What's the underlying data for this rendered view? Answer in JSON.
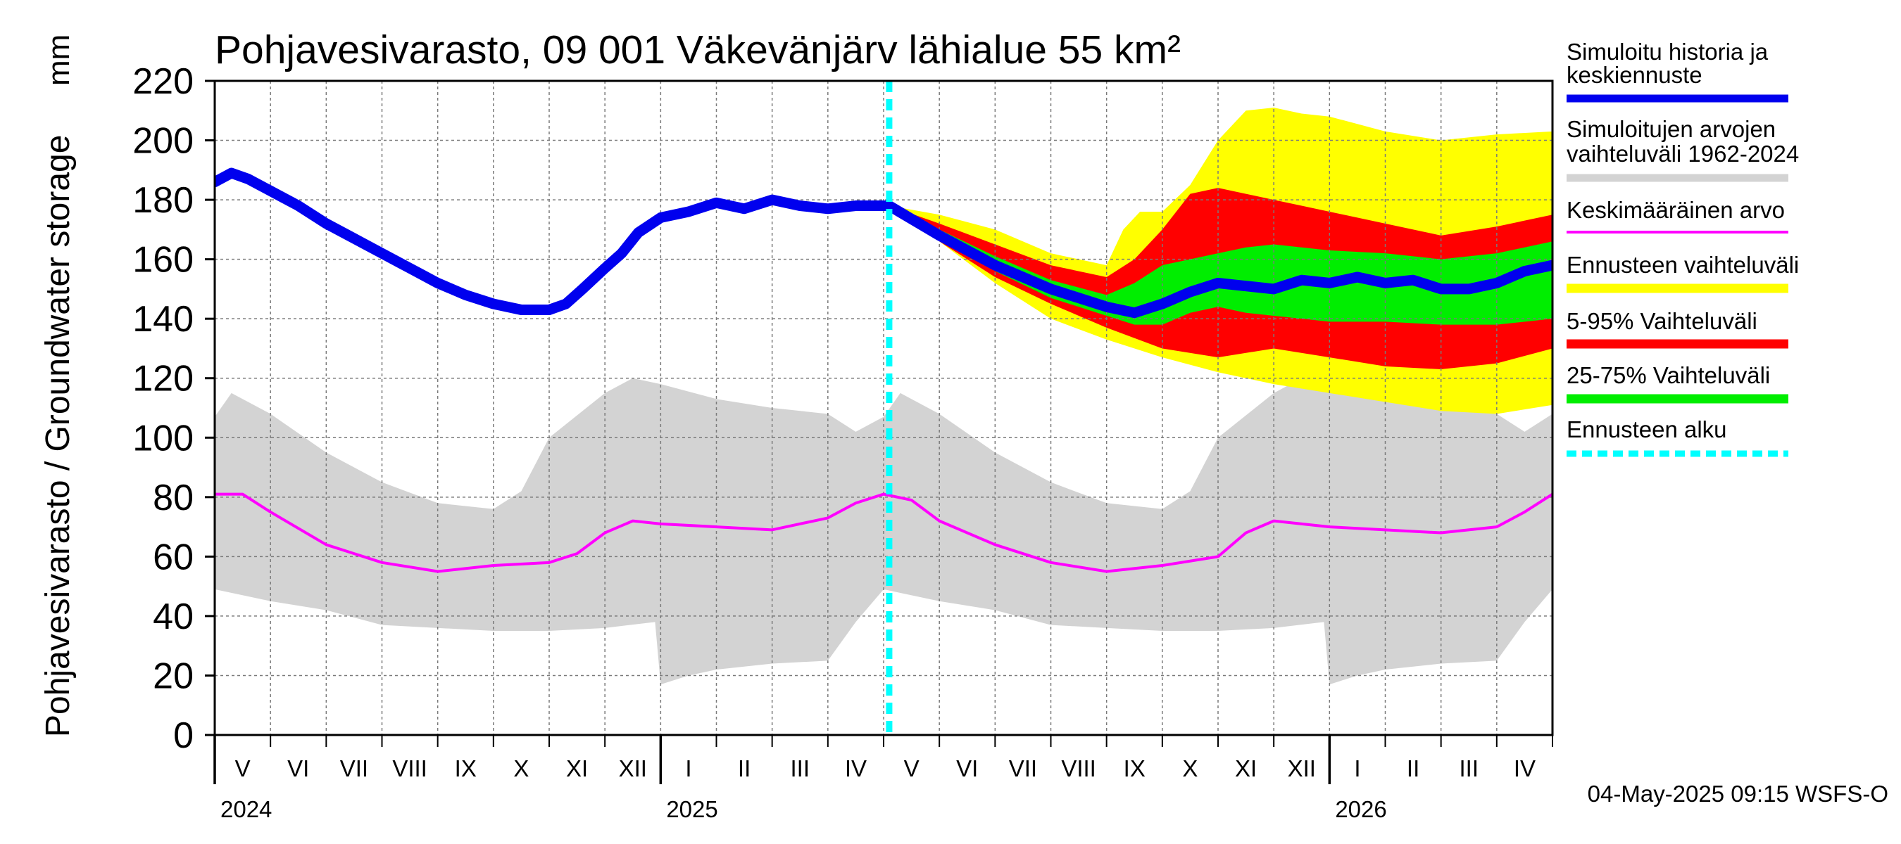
{
  "chart_data": {
    "type": "area",
    "title": "Pohjavesivarasto, 09 001 Väkevänjärv lähialue 55 km²",
    "ylabel": "Pohjavesivarasto / Groundwater storage",
    "yunit": "mm",
    "ylim": [
      0,
      220
    ],
    "yticks": [
      0,
      20,
      40,
      60,
      80,
      100,
      120,
      140,
      160,
      180,
      200,
      220
    ],
    "xlim": [
      0,
      24
    ],
    "x_unit": "months since 1 May 2024",
    "forecast_start": 12.1,
    "month_labels": [
      "V",
      "VI",
      "VII",
      "VIII",
      "IX",
      "X",
      "XI",
      "XII",
      "I",
      "II",
      "III",
      "IV",
      "V",
      "VI",
      "VII",
      "VIII",
      "IX",
      "X",
      "XI",
      "XII",
      "I",
      "II",
      "III",
      "IV"
    ],
    "year_labels": [
      {
        "label": "2024",
        "x": 0
      },
      {
        "label": "2025",
        "x": 8
      },
      {
        "label": "2026",
        "x": 20
      }
    ],
    "timestamp": "04-May-2025 09:15 WSFS-O",
    "legend": [
      {
        "key": "history",
        "label1": "Simuloitu historia ja",
        "label2": "keskiennuste",
        "color": "#0000ee",
        "style": "solid"
      },
      {
        "key": "range",
        "label1": "Simuloitujen arvojen",
        "label2": "vaihteluväli 1962-2024",
        "color": "#d3d3d3",
        "style": "solid"
      },
      {
        "key": "mean",
        "label1": "Keskimääräinen arvo",
        "label2": "",
        "color": "#ff00ff",
        "style": "thin"
      },
      {
        "key": "forecast",
        "label1": "Ennusteen vaihteluväli",
        "label2": "",
        "color": "#ffff00",
        "style": "solid"
      },
      {
        "key": "p5_95",
        "label1": "5-95% Vaihteluväli",
        "label2": "",
        "color": "#ff0000",
        "style": "solid"
      },
      {
        "key": "p25_75",
        "label1": "25-75% Vaihteluväli",
        "label2": "",
        "color": "#00ee00",
        "style": "solid"
      },
      {
        "key": "start",
        "label1": "Ennusteen alku",
        "label2": "",
        "color": "#00ffff",
        "style": "dashed"
      }
    ],
    "series": {
      "history": {
        "x": [
          0,
          0.3,
          0.6,
          1,
          1.5,
          2,
          2.5,
          3,
          3.5,
          4,
          4.5,
          5,
          5.5,
          6,
          6.3,
          6.6,
          7,
          7.3,
          7.6,
          8,
          8.5,
          9,
          9.5,
          10,
          10.5,
          11,
          11.5,
          12,
          12.1
        ],
        "y": [
          186,
          189,
          187,
          183,
          178,
          172,
          167,
          162,
          157,
          152,
          148,
          145,
          143,
          143,
          145,
          150,
          157,
          162,
          169,
          174,
          176,
          179,
          177,
          180,
          178,
          177,
          178,
          178,
          178
        ]
      },
      "forecast_median": {
        "x": [
          12.1,
          13,
          14,
          15,
          16,
          16.5,
          17,
          17.5,
          18,
          18.5,
          19,
          19.5,
          20,
          20.5,
          21,
          21.5,
          22,
          22.5,
          23,
          23.5,
          24
        ],
        "y": [
          178,
          168,
          158,
          150,
          144,
          142,
          145,
          149,
          152,
          151,
          150,
          153,
          152,
          154,
          152,
          153,
          150,
          150,
          152,
          156,
          158
        ]
      },
      "mean": {
        "x": [
          0,
          0.5,
          1,
          2,
          3,
          4,
          5,
          6,
          6.5,
          7,
          7.5,
          8,
          9,
          10,
          11,
          11.5,
          12,
          12.5,
          13,
          14,
          15,
          16,
          17,
          18,
          18.5,
          19,
          19.5,
          20,
          21,
          22,
          23,
          23.5,
          24
        ],
        "y": [
          81,
          81,
          75,
          64,
          58,
          55,
          57,
          58,
          61,
          68,
          72,
          71,
          70,
          69,
          73,
          78,
          81,
          79,
          72,
          64,
          58,
          55,
          57,
          60,
          68,
          72,
          71,
          70,
          69,
          68,
          70,
          75,
          81
        ]
      },
      "range_upper": {
        "x": [
          0,
          0.3,
          1,
          2,
          3,
          4,
          5,
          5.5,
          6,
          7,
          7.5,
          8,
          9,
          10,
          11,
          11.5,
          12,
          12.3,
          13,
          14,
          15,
          16,
          17,
          17.5,
          18,
          19,
          19.5,
          20,
          21,
          22,
          23,
          23.5,
          24
        ],
        "y": [
          107,
          115,
          108,
          95,
          85,
          78,
          76,
          82,
          100,
          115,
          120,
          118,
          113,
          110,
          108,
          102,
          107,
          115,
          108,
          95,
          85,
          78,
          76,
          82,
          100,
          115,
          120,
          118,
          113,
          110,
          108,
          102,
          108
        ]
      },
      "range_lower": {
        "x": [
          0,
          1,
          2,
          3,
          4,
          5,
          6,
          7,
          7.9,
          8,
          8.5,
          9,
          10,
          11,
          11.5,
          12,
          13,
          14,
          15,
          16,
          17,
          18,
          19,
          19.9,
          20,
          20.5,
          21,
          22,
          23,
          23.5,
          24
        ],
        "y": [
          49,
          45,
          42,
          37,
          36,
          35,
          35,
          36,
          38,
          17,
          20,
          22,
          24,
          25,
          38,
          49,
          45,
          42,
          37,
          36,
          35,
          35,
          36,
          38,
          17,
          20,
          22,
          24,
          25,
          38,
          49
        ]
      },
      "forecast_upper": {
        "x": [
          12.1,
          13,
          14,
          15,
          16,
          16.3,
          16.6,
          17,
          17.5,
          18,
          18.5,
          19,
          19.5,
          20,
          21,
          22,
          23,
          24
        ],
        "y": [
          178,
          175,
          170,
          162,
          158,
          170,
          176,
          176,
          185,
          200,
          210,
          211,
          209,
          208,
          203,
          200,
          202,
          203
        ]
      },
      "forecast_lower": {
        "x": [
          12.1,
          13,
          14,
          15,
          16,
          17,
          18,
          19,
          20,
          21,
          22,
          23,
          24
        ],
        "y": [
          178,
          166,
          152,
          140,
          133,
          127,
          122,
          118,
          115,
          112,
          109,
          108,
          111
        ]
      },
      "p95": {
        "x": [
          12.1,
          13,
          14,
          15,
          16,
          16.5,
          17,
          17.5,
          18,
          18.5,
          19,
          19.5,
          20,
          21,
          22,
          23,
          24
        ],
        "y": [
          178,
          172,
          165,
          158,
          154,
          160,
          170,
          182,
          184,
          182,
          180,
          178,
          176,
          172,
          168,
          171,
          175
        ]
      },
      "p5": {
        "x": [
          12.1,
          13,
          14,
          15,
          16,
          17,
          18,
          19,
          20,
          21,
          22,
          23,
          24
        ],
        "y": [
          178,
          166,
          154,
          145,
          137,
          130,
          127,
          130,
          127,
          124,
          123,
          125,
          130
        ]
      },
      "p75": {
        "x": [
          12.1,
          13,
          14,
          15,
          16,
          16.5,
          17,
          17.5,
          18,
          18.5,
          19,
          19.5,
          20,
          21,
          22,
          23,
          24
        ],
        "y": [
          178,
          170,
          161,
          153,
          148,
          152,
          158,
          160,
          162,
          164,
          165,
          164,
          163,
          162,
          160,
          162,
          166
        ]
      },
      "p25": {
        "x": [
          12.1,
          13,
          14,
          15,
          16,
          16.5,
          17,
          17.5,
          18,
          18.5,
          19,
          19.5,
          20,
          21,
          22,
          23,
          24
        ],
        "y": [
          178,
          167,
          156,
          147,
          141,
          138,
          138,
          142,
          144,
          142,
          141,
          140,
          139,
          139,
          138,
          138,
          140
        ]
      }
    }
  }
}
